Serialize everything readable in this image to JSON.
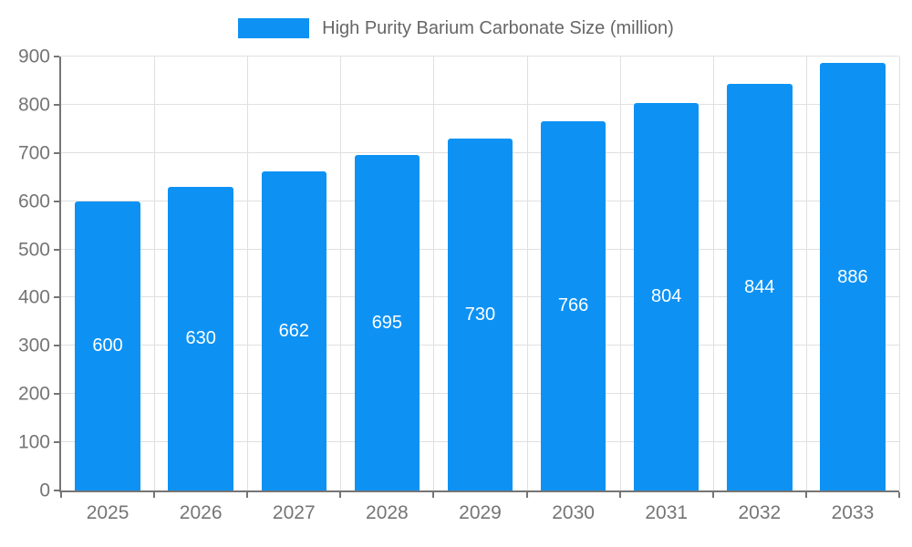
{
  "chart_data": {
    "type": "bar",
    "title": "High Purity Barium Carbonate Size (million)",
    "categories": [
      "2025",
      "2026",
      "2027",
      "2028",
      "2029",
      "2030",
      "2031",
      "2032",
      "2033"
    ],
    "values": [
      600,
      630,
      662,
      695,
      730,
      766,
      804,
      844,
      886
    ],
    "xlabel": "",
    "ylabel": "",
    "ylim": [
      0,
      900
    ],
    "yticks": [
      0,
      100,
      200,
      300,
      400,
      500,
      600,
      700,
      800,
      900
    ],
    "grid": true,
    "legend_position": "top-center",
    "bar_width_fraction": 0.7,
    "colors": {
      "bar": "#0d92f4",
      "grid": "#e0e0e0",
      "axis": "#757575",
      "value_label": "#ffffff",
      "legend_text": "#666666",
      "background": "#ffffff"
    }
  }
}
